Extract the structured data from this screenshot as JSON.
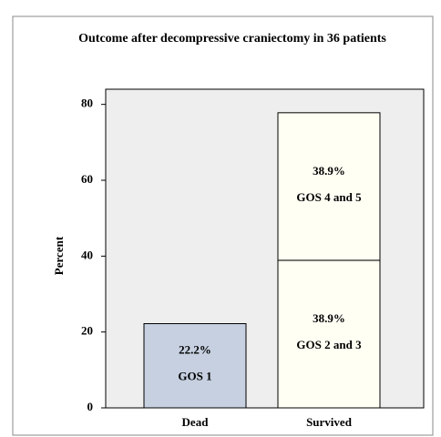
{
  "chart_data": {
    "type": "stacked_bar",
    "title": "Outcome after decompressive craniectomy in 36 patients",
    "ylabel": "Percent",
    "categories": [
      "Dead",
      "Survived"
    ],
    "series": [
      {
        "name": "GOS 1",
        "color": "#c6d0e0",
        "values": [
          22.2,
          null
        ],
        "value_labels": [
          "22.2%",
          null
        ]
      },
      {
        "name": "GOS 2 and 3",
        "color": "#fffff4",
        "values": [
          null,
          38.9
        ],
        "value_labels": [
          null,
          "38.9%"
        ]
      },
      {
        "name": "GOS 4 and 5",
        "color": "#fffff4",
        "values": [
          null,
          38.9
        ],
        "value_labels": [
          null,
          "38.9%"
        ]
      }
    ],
    "ylim": [
      0,
      84
    ],
    "yticks": [
      0,
      20,
      40,
      60,
      80
    ],
    "grid": false
  }
}
